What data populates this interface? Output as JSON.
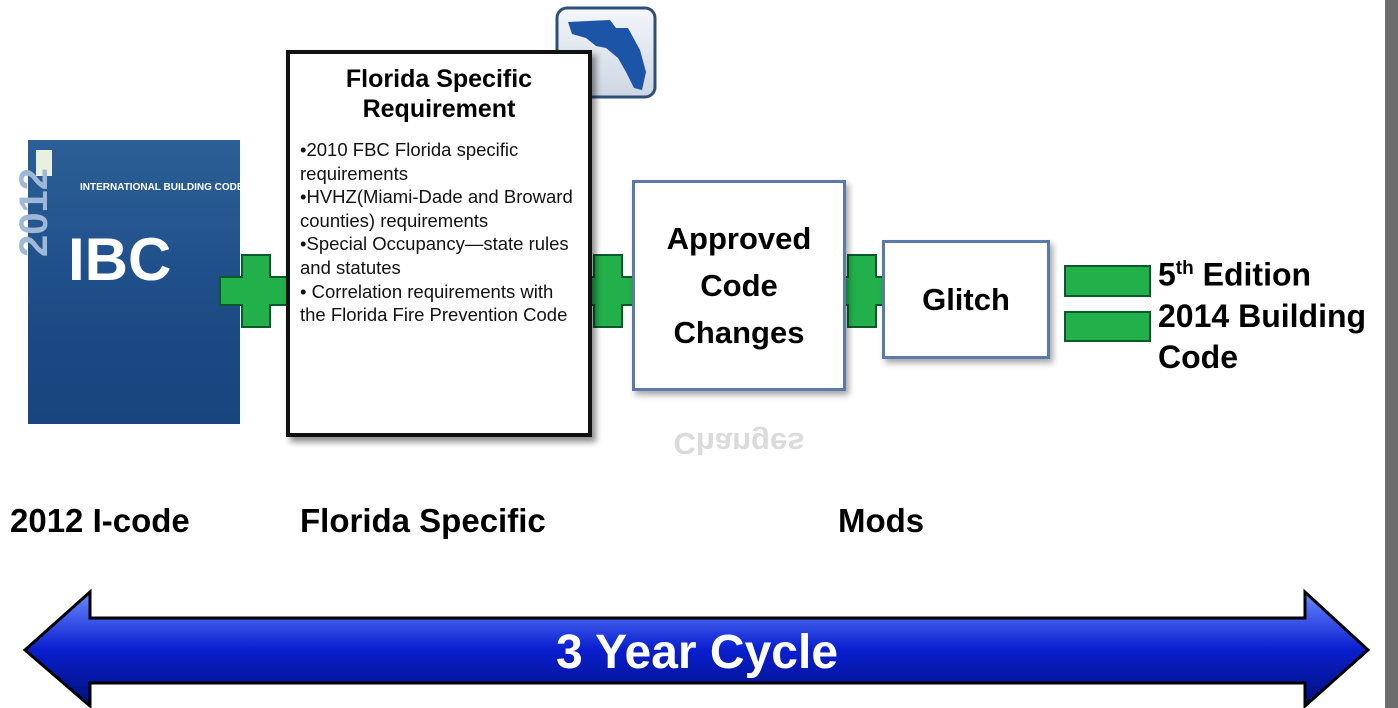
{
  "book": {
    "year": "2012",
    "name": "INTERNATIONAL BUILDING CODE",
    "acronym": "IBC"
  },
  "florida": {
    "title_lines": [
      "Florida Specific",
      "Requirement"
    ],
    "items": [
      "•2010 FBC Florida specific requirements",
      "•HVHZ(Miami-Dade and Broward counties) requirements",
      "•Special Occupancy—state rules and statutes",
      "• Correlation requirements with the Florida Fire Prevention Code"
    ]
  },
  "approved": {
    "lines": [
      "Approved",
      "Code",
      "Changes"
    ]
  },
  "glitch": {
    "label": "Glitch"
  },
  "result": {
    "ordinal": "5",
    "ordinal_suffix": "th",
    "edition": "Edition",
    "lines": [
      "2014 Building",
      "Code"
    ]
  },
  "labels": [
    "2012 I-code",
    "Florida Specific",
    "Mods"
  ],
  "cycle": {
    "label": "3 Year Cycle"
  }
}
